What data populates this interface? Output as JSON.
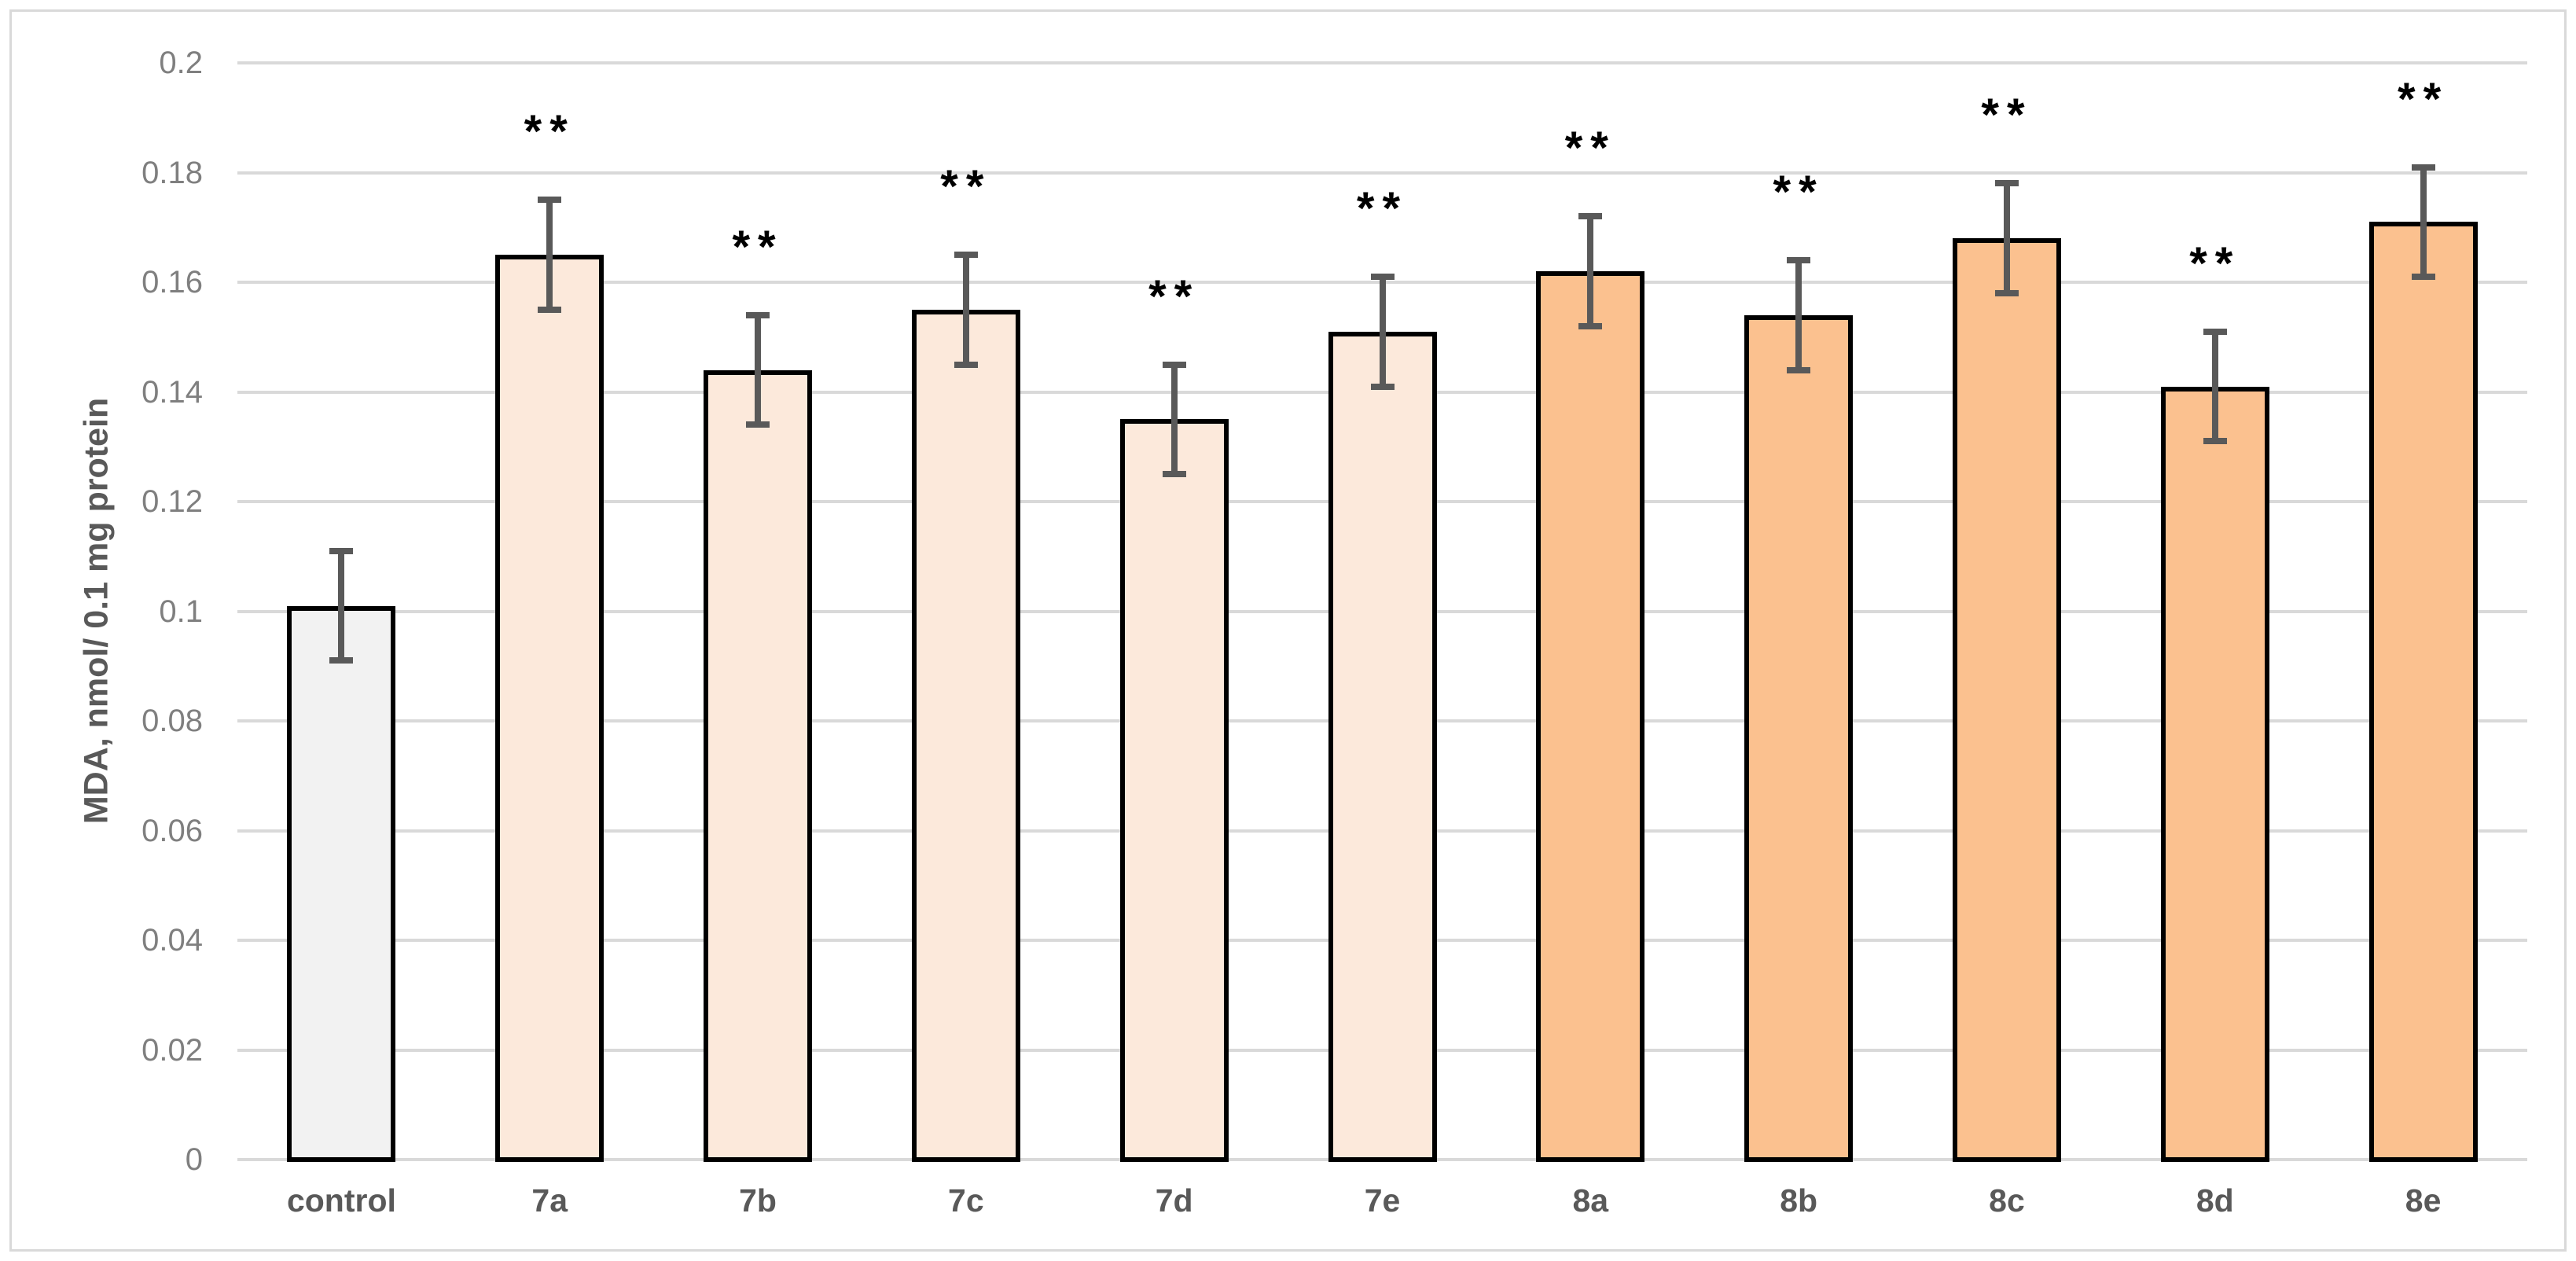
{
  "figure": {
    "background_color": "#FFFFFF",
    "frame_border_color": "#D9D9D9"
  },
  "chart_data": {
    "type": "bar",
    "title": "",
    "xlabel": "",
    "ylabel": "MDA, nmol/ 0.1 mg protein",
    "ylim": [
      0,
      0.2
    ],
    "grid": true,
    "legend": "none",
    "yticks": [
      0,
      0.02,
      0.04,
      0.06,
      0.08,
      0.1,
      0.12,
      0.14,
      0.16,
      0.18,
      0.2
    ],
    "ytick_labels": [
      "0",
      "0.02",
      "0.04",
      "0.06",
      "0.08",
      "0.1",
      "0.12",
      "0.14",
      "0.16",
      "0.18",
      "0.2"
    ],
    "categories": [
      "control",
      "7a",
      "7b",
      "7c",
      "7d",
      "7e",
      "8a",
      "8b",
      "8c",
      "8d",
      "8e"
    ],
    "series": [
      {
        "name": "MDA",
        "values": [
          0.101,
          0.165,
          0.144,
          0.155,
          0.135,
          0.151,
          0.162,
          0.154,
          0.168,
          0.141,
          0.171
        ],
        "errors": [
          0.01,
          0.01,
          0.01,
          0.01,
          0.01,
          0.01,
          0.01,
          0.01,
          0.01,
          0.01,
          0.01
        ]
      }
    ],
    "significance_markers": [
      "",
      "**",
      "**",
      "**",
      "**",
      "**",
      "**",
      "**",
      "**",
      "**",
      "**"
    ],
    "bar_fill_colors": [
      "#F2F2F2",
      "#FCE9DB",
      "#FCE9DB",
      "#FCE9DB",
      "#FCE9DB",
      "#FCE9DB",
      "#FBC18F",
      "#FBC18F",
      "#FBC18F",
      "#FBC18F",
      "#FBC18F"
    ],
    "bar_border_color": "#000000",
    "error_bar_color": "#595959",
    "gridline_color": "#D9D9D9",
    "tick_label_color": "#7F7F7F",
    "category_label_color": "#595959",
    "axis_title_color": "#595959"
  }
}
